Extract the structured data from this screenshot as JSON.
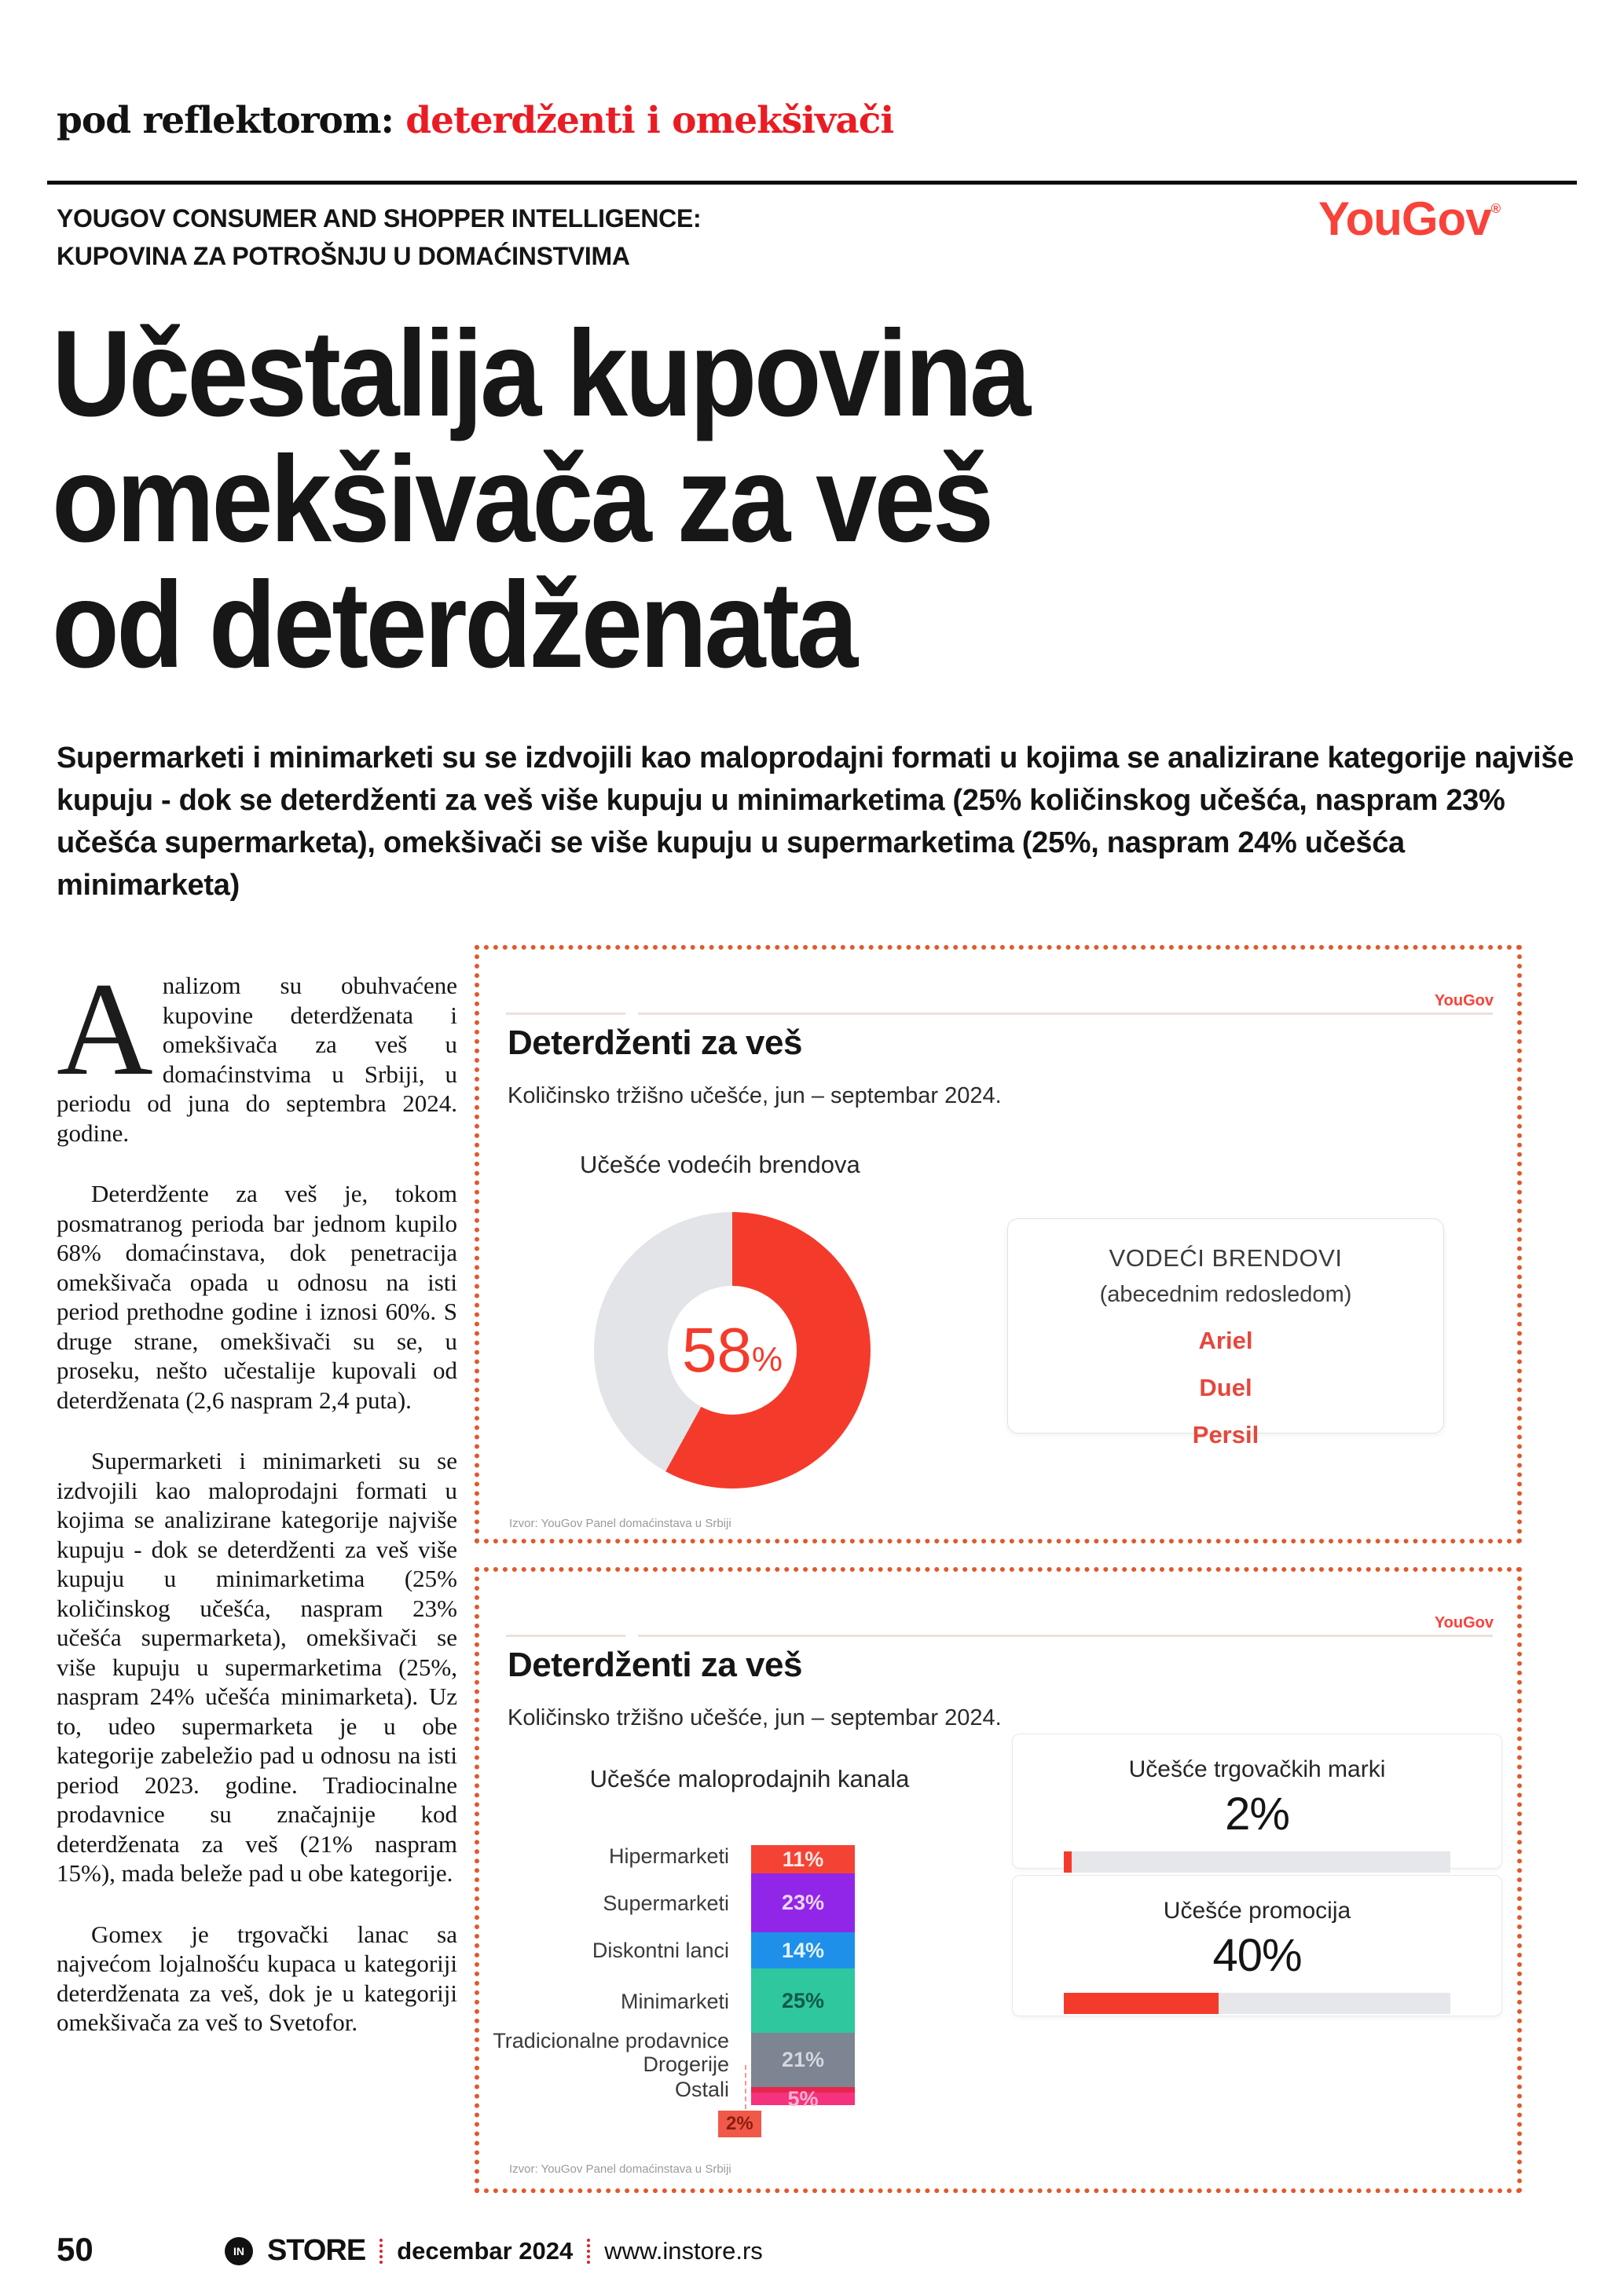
{
  "colors": {
    "accent_red": "#f43b2b",
    "brand_red": "#f9423a",
    "kicker_red": "#e91c24",
    "dotted_border": "#e0592c",
    "donut_gray": "#e3e4e8",
    "track_gray": "#e6e7eb"
  },
  "header": {
    "kicker_black": "pod reflektorom: ",
    "kicker_red": "deterdženti i omekšivači",
    "eyebrow_line1": "YOUGOV CONSUMER AND SHOPPER INTELLIGENCE:",
    "eyebrow_line2": "KUPOVINA ZA POTROŠNJU U DOMAĆINSTVIMA",
    "logo_text": "YouGov",
    "logo_reg": "®",
    "title_lines": [
      "Učestalija kupovina",
      "omekšivača za veš",
      "od deterdženata"
    ],
    "intro": "Supermarketi i minimarketi su se izdvojili kao maloprodajni formati u kojima se analizirane kategorije najviše kupuju - dok se deterdženti za veš više kupuju u minimarketima (25% količinskog učešća, naspram 23% učešća supermarketa), omekšivači se više kupuju u supermarketima (25%, naspram 24% učešća minimarketa)"
  },
  "article": {
    "dropcap": "A",
    "p1_rest": "nalizom su obuhvaćene kupovine deterdženata i omekšivača za veš u domaćinstvima u Srbiji, u periodu od juna do septembra 2024. godine.",
    "p2": "Deterdžente za veš je, tokom posmatranog perioda bar jednom kupilo 68% domaćinstava, dok penetracija omekšivača opada u odnosu na isti period prethodne godine i iznosi 60%. S druge strane, omekšivači su se, u proseku, nešto učestalije kupovali od deterdženata (2,6 naspram 2,4 puta).",
    "p3": "Supermarketi i minimarketi su se izdvojili kao maloprodajni formati u kojima se analizirane kategorije najviše kupuju - dok se deterdženti za veš više kupuju u minimarketima (25% količinskog učešća, naspram 23% učešća supermarketa), omekšivači se više kupuju u supermarketima (25%, naspram 24% učešća minimarketa). Uz to, udeo supermarketa je u obe kategorije zabeležio pad u odnosu na isti period 2023. godine. Tradiocinalne prodavnice su značajnije kod deterdženata za veš (21% naspram 15%), mada beleže pad u obe kategorije.",
    "p4": "Gomex je trgovački lanac sa najvećom lojalnošću kupaca u kategoriji deterdženata za veš, dok je u kategoriji omekšivača za veš to Svetofor."
  },
  "panel1": {
    "brand": "YouGov",
    "title": "Deterdženti za veš",
    "subtitle": "Količinsko tržišno učešće, jun – septembar 2024.",
    "chart_label": "Učešće vodećih brendova",
    "donut_value": "58",
    "donut_unit": "%",
    "brands_box": {
      "title": "VODEĆI BRENDOVI",
      "subtitle": "(abecednim redosledom)",
      "brands": [
        "Ariel",
        "Duel",
        "Persil"
      ]
    },
    "source": "Izvor: YouGov Panel domaćinstava u Srbiji"
  },
  "panel2": {
    "brand": "YouGov",
    "title": "Deterdženti za veš",
    "subtitle": "Količinsko tržišno učešće, jun – septembar 2024.",
    "left_chart_label": "Učešće maloprodajnih kanala",
    "channels": [
      {
        "label": "Hipermarketi",
        "value": 11,
        "value_label": "11%",
        "color": "#f44334"
      },
      {
        "label": "Supermarketi",
        "value": 23,
        "value_label": "23%",
        "color": "#9126e9"
      },
      {
        "label": "Diskontni lanci",
        "value": 14,
        "value_label": "14%",
        "color": "#1e90ea"
      },
      {
        "label": "Minimarketi",
        "value": 25,
        "value_label": "25%",
        "color": "#2ec79e"
      },
      {
        "label": "Tradicionalne prodavnice",
        "value": 21,
        "value_label": "21%",
        "color": "#7d8492"
      },
      {
        "label": "Drogerije",
        "value": 2,
        "value_label": "2%",
        "color": "#e8254e"
      },
      {
        "label": "Ostali",
        "value": 5,
        "value_label": "5%",
        "color": "#f5327e"
      }
    ],
    "card1": {
      "title": "Učešće trgovačkih marki",
      "value_label": "2%",
      "pct": 2
    },
    "card2": {
      "title": "Učešće promocija",
      "value_label": "40%",
      "pct": 40
    },
    "source": "Izvor: YouGov Panel domaćinstava u Srbiji"
  },
  "footer": {
    "page_number": "50",
    "logo_circle": "IN",
    "logo_store": "STORE",
    "issue": "decembar 2024",
    "website": "www.instore.rs"
  },
  "chart_data": [
    {
      "type": "pie",
      "variant": "donut",
      "title": "Učešće vodećih brendova",
      "labels": [
        "Vodeći brendovi (Ariel, Duel, Persil)",
        "Ostali"
      ],
      "values": [
        58,
        42
      ],
      "unit": "%",
      "colors": [
        "#f43b2b",
        "#e3e4e8"
      ],
      "center_label": "58%"
    },
    {
      "type": "bar",
      "variant": "stacked-column",
      "title": "Učešće maloprodajnih kanala",
      "categories": [
        "Hipermarketi",
        "Supermarketi",
        "Diskontni lanci",
        "Minimarketi",
        "Tradicionalne prodavnice",
        "Drogerije",
        "Ostali"
      ],
      "values": [
        11,
        23,
        14,
        25,
        21,
        2,
        5
      ],
      "unit": "%",
      "colors": [
        "#f44334",
        "#9126e9",
        "#1e90ea",
        "#2ec79e",
        "#7d8492",
        "#e8254e",
        "#f5327e"
      ]
    },
    {
      "type": "bar",
      "variant": "progress",
      "title": "Učešće trgovačkih marki",
      "values": [
        2
      ],
      "max": 100,
      "unit": "%"
    },
    {
      "type": "bar",
      "variant": "progress",
      "title": "Učešće promocija",
      "values": [
        40
      ],
      "max": 100,
      "unit": "%"
    }
  ]
}
